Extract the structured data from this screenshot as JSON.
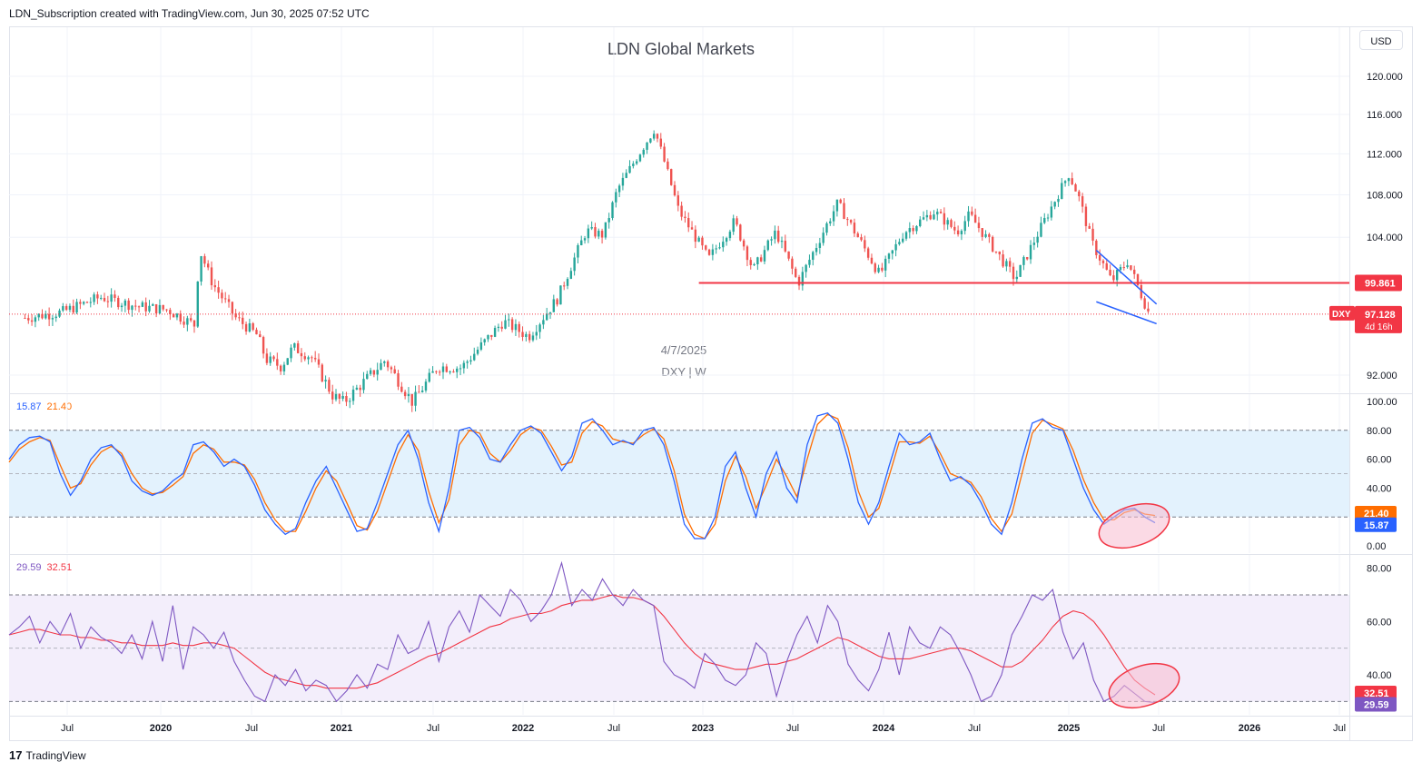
{
  "header": {
    "text": "LDN_Subscription created with TradingView.com, Jun 30, 2025 07:52 UTC"
  },
  "toolbar": {
    "currency": "USD"
  },
  "footer": {
    "brand": "TradingView",
    "logo_glyph": "17"
  },
  "colors": {
    "up": "#26a69a",
    "down": "#ef5350",
    "level": "#f23645",
    "wedge": "#2962ff",
    "stoch_k": "#2962ff",
    "stoch_d": "#ff6d00",
    "stoch_band": "#e3f2fd",
    "rsi_line": "#7e57c2",
    "rsi_ma": "#f23645",
    "rsi_band": "#f3eefb",
    "highlight": "#f8bbd0"
  },
  "chart_data": [
    {
      "type": "candlestick",
      "title": "LDN Global Markets",
      "symbol": "DXY",
      "interval": "W",
      "watermark_date": "4/7/2025",
      "watermark_symbol": "DXY | W",
      "scale": "log",
      "yrange": [
        90.5,
        124
      ],
      "y_ticks": [
        "120.000",
        "116.000",
        "112.000",
        "108.000",
        "104.000",
        "99.861",
        "97.128",
        "92.000"
      ],
      "y_tick_values": [
        120,
        116,
        112,
        108,
        104,
        92
      ],
      "x_ticks": [
        "Jul",
        "2020",
        "Jul",
        "2021",
        "Jul",
        "2022",
        "Jul",
        "2023",
        "Jul",
        "2024",
        "Jul",
        "2025",
        "Jul",
        "2026",
        "Jul"
      ],
      "close_path": [
        [
          "2019-04-01",
          96.8
        ],
        [
          "2019-06-15",
          97.3
        ],
        [
          "2019-09-01",
          98.6
        ],
        [
          "2019-11-15",
          97.8
        ],
        [
          "2020-01-15",
          97.5
        ],
        [
          "2020-03-09",
          96.2
        ],
        [
          "2020-03-20",
          102.8
        ],
        [
          "2020-04-15",
          99.8
        ],
        [
          "2020-06-01",
          96.8
        ],
        [
          "2020-07-15",
          95.3
        ],
        [
          "2020-08-01",
          93.3
        ],
        [
          "2020-09-01",
          92.7
        ],
        [
          "2020-09-25",
          94.3
        ],
        [
          "2020-11-01",
          93.5
        ],
        [
          "2020-12-15",
          90.3
        ],
        [
          "2021-01-06",
          89.8
        ],
        [
          "2021-03-30",
          93.2
        ],
        [
          "2021-05-25",
          89.8
        ],
        [
          "2021-07-15",
          92.7
        ],
        [
          "2021-09-01",
          92.6
        ],
        [
          "2021-11-25",
          96.5
        ],
        [
          "2022-01-15",
          95.2
        ],
        [
          "2022-03-15",
          98.5
        ],
        [
          "2022-05-12",
          104.6
        ],
        [
          "2022-06-15",
          104.2
        ],
        [
          "2022-07-14",
          108.5
        ],
        [
          "2022-09-27",
          114.5
        ],
        [
          "2022-11-15",
          106.5
        ],
        [
          "2023-01-15",
          102.0
        ],
        [
          "2023-03-08",
          105.5
        ],
        [
          "2023-04-15",
          101.0
        ],
        [
          "2023-05-31",
          104.5
        ],
        [
          "2023-07-15",
          99.8
        ],
        [
          "2023-10-03",
          107.2
        ],
        [
          "2023-12-27",
          100.6
        ],
        [
          "2024-02-15",
          104.5
        ],
        [
          "2024-04-16",
          106.4
        ],
        [
          "2024-06-01",
          104.5
        ],
        [
          "2024-06-26",
          106.1
        ],
        [
          "2024-09-27",
          100.2
        ],
        [
          "2025-01-13",
          110.0
        ],
        [
          "2025-02-01",
          108.0
        ],
        [
          "2025-03-01",
          103.5
        ],
        [
          "2025-04-10",
          100.0
        ],
        [
          "2025-05-12",
          101.8
        ],
        [
          "2025-06-25",
          97.128
        ]
      ],
      "annotations": {
        "horizontal_level": 99.861,
        "horizontal_level_start": "2022-12-26",
        "current_price": 97.128,
        "symbol_label": "DXY",
        "countdown": "4d 16h",
        "wedge_upper": [
          [
            "2025-03-10",
            102.8
          ],
          [
            "2025-07-10",
            98.0
          ]
        ],
        "wedge_lower": [
          [
            "2025-03-10",
            98.2
          ],
          [
            "2025-07-10",
            96.3
          ]
        ]
      }
    },
    {
      "type": "line",
      "name": "Stochastic",
      "legend_values": [
        "15.87",
        "21.40"
      ],
      "ylim": [
        0,
        100
      ],
      "y_ticks": [
        "100.00",
        "80.00",
        "60.00",
        "40.00",
        "0.00"
      ],
      "band": [
        20,
        80
      ],
      "midline": 50,
      "last_values": {
        "d": "21.40",
        "k": "15.87"
      },
      "series": [
        {
          "key": "k",
          "values": [
            60,
            70,
            75,
            76,
            72,
            50,
            35,
            45,
            60,
            68,
            70,
            62,
            45,
            38,
            35,
            38,
            45,
            50,
            70,
            72,
            65,
            55,
            60,
            55,
            42,
            25,
            15,
            8,
            12,
            30,
            45,
            55,
            40,
            25,
            10,
            12,
            30,
            50,
            70,
            80,
            60,
            30,
            10,
            40,
            80,
            82,
            75,
            60,
            58,
            70,
            80,
            83,
            78,
            65,
            52,
            62,
            85,
            88,
            80,
            70,
            73,
            70,
            80,
            82,
            70,
            45,
            15,
            5,
            5,
            20,
            55,
            65,
            40,
            20,
            50,
            65,
            40,
            30,
            70,
            90,
            92,
            85,
            60,
            30,
            15,
            30,
            55,
            78,
            70,
            72,
            78,
            60,
            45,
            48,
            42,
            30,
            15,
            8,
            30,
            60,
            85,
            88,
            82,
            80,
            60,
            40,
            25,
            15,
            20,
            25,
            26,
            20,
            16
          ]
        },
        {
          "key": "d",
          "values": [
            58,
            67,
            72,
            75,
            73,
            56,
            40,
            43,
            56,
            65,
            69,
            64,
            50,
            40,
            36,
            37,
            42,
            48,
            64,
            70,
            67,
            58,
            58,
            56,
            46,
            30,
            18,
            10,
            10,
            24,
            40,
            52,
            45,
            30,
            14,
            11,
            24,
            44,
            64,
            77,
            66,
            38,
            16,
            32,
            70,
            80,
            78,
            64,
            58,
            66,
            77,
            82,
            80,
            69,
            56,
            58,
            78,
            86,
            83,
            74,
            72,
            71,
            77,
            81,
            74,
            52,
            22,
            8,
            5,
            15,
            45,
            62,
            48,
            26,
            42,
            60,
            48,
            34,
            60,
            84,
            91,
            88,
            68,
            38,
            20,
            26,
            48,
            72,
            72,
            71,
            76,
            64,
            50,
            47,
            44,
            34,
            19,
            10,
            22,
            50,
            78,
            87,
            84,
            81,
            66,
            46,
            30,
            18,
            18,
            23,
            25,
            22,
            21
          ]
        }
      ]
    },
    {
      "type": "line",
      "name": "RSI",
      "legend_values": [
        "29.59",
        "32.51"
      ],
      "ylim": [
        25,
        85
      ],
      "y_ticks": [
        "80.00",
        "60.00",
        "40.00"
      ],
      "band": [
        30,
        70
      ],
      "midline": 50,
      "last_values": {
        "ma": "32.51",
        "rsi": "29.59"
      },
      "series": [
        {
          "key": "rsi",
          "values": [
            55,
            58,
            62,
            52,
            60,
            55,
            63,
            50,
            58,
            54,
            52,
            48,
            55,
            46,
            60,
            45,
            66,
            42,
            58,
            55,
            50,
            56,
            45,
            38,
            32,
            30,
            40,
            36,
            42,
            34,
            38,
            36,
            30,
            34,
            40,
            35,
            44,
            42,
            55,
            48,
            50,
            60,
            45,
            58,
            64,
            56,
            70,
            66,
            62,
            72,
            68,
            60,
            64,
            70,
            82,
            66,
            72,
            68,
            76,
            70,
            66,
            72,
            68,
            66,
            45,
            40,
            38,
            35,
            48,
            44,
            38,
            36,
            40,
            52,
            48,
            32,
            45,
            55,
            62,
            52,
            66,
            60,
            44,
            38,
            34,
            42,
            56,
            40,
            58,
            52,
            50,
            58,
            55,
            48,
            40,
            30,
            32,
            40,
            55,
            62,
            70,
            68,
            72,
            56,
            46,
            52,
            38,
            30,
            32,
            36,
            33,
            30,
            29.59
          ]
        },
        {
          "key": "ma",
          "values": [
            55,
            56,
            57,
            57,
            56,
            55,
            55,
            54,
            54,
            53,
            53,
            52,
            52,
            51,
            51,
            51,
            52,
            51,
            51,
            52,
            52,
            51,
            50,
            47,
            44,
            41,
            39,
            38,
            37,
            36,
            36,
            35,
            35,
            35,
            35,
            36,
            37,
            39,
            41,
            43,
            45,
            47,
            48,
            50,
            52,
            54,
            56,
            58,
            59,
            61,
            62,
            63,
            63,
            64,
            66,
            67,
            68,
            68,
            69,
            70,
            69,
            69,
            68,
            66,
            62,
            57,
            52,
            48,
            45,
            44,
            43,
            42,
            42,
            43,
            44,
            44,
            45,
            46,
            48,
            50,
            52,
            54,
            53,
            51,
            49,
            47,
            46,
            46,
            46,
            47,
            48,
            49,
            50,
            50,
            49,
            47,
            45,
            43,
            43,
            45,
            49,
            53,
            58,
            62,
            64,
            63,
            60,
            55,
            49,
            43,
            38,
            35,
            32.51
          ]
        }
      ]
    }
  ]
}
